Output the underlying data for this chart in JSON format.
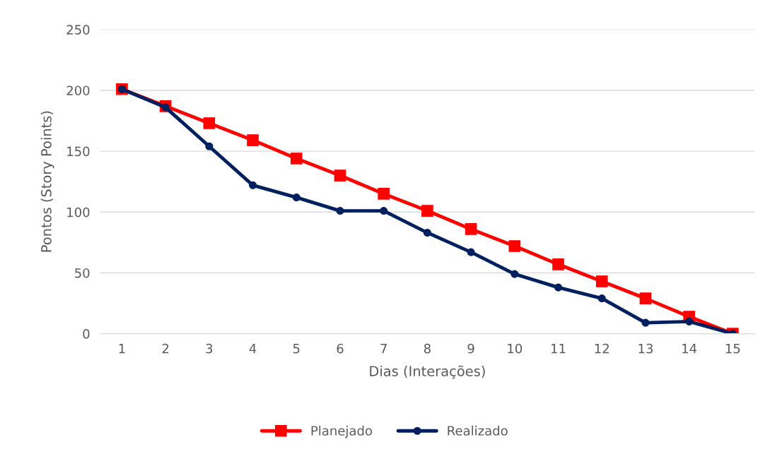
{
  "chart_data": {
    "type": "line",
    "xlabel": "Dias (Interações)",
    "ylabel": "Pontos (Story Points)",
    "categories": [
      "1",
      "2",
      "3",
      "4",
      "5",
      "6",
      "7",
      "8",
      "9",
      "10",
      "11",
      "12",
      "13",
      "14",
      "15"
    ],
    "series": [
      {
        "name": "Planejado",
        "color": "#ff0000",
        "marker": "square",
        "values": [
          201,
          187,
          173,
          159,
          144,
          130,
          115,
          101,
          86,
          72,
          57,
          43,
          29,
          14,
          0
        ]
      },
      {
        "name": "Realizado",
        "color": "#002060",
        "marker": "circle",
        "values": [
          201,
          186,
          154,
          122,
          112,
          101,
          101,
          83,
          67,
          49,
          38,
          29,
          9,
          10,
          0
        ]
      }
    ],
    "ylim": [
      0,
      250
    ],
    "yticks": [
      0,
      50,
      100,
      150,
      200,
      250
    ],
    "grid": "y",
    "legend": "bottom",
    "line_style": "solid"
  }
}
